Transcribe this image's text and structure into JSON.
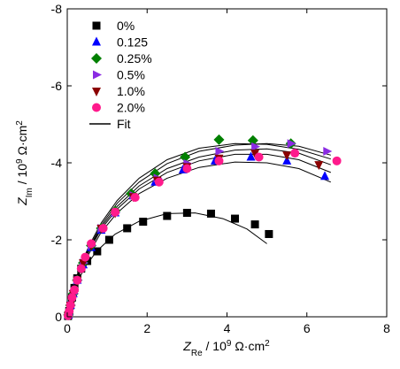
{
  "chart_data": {
    "type": "scatter",
    "x_axis": {
      "label_main": "Z",
      "label_sub": "Re",
      "label_unit": " / 10",
      "label_exp": "9",
      "label_tail": " Ω·cm",
      "label_sq": "2",
      "range": [
        0,
        8
      ],
      "ticks": [
        0,
        2,
        4,
        6,
        8
      ]
    },
    "y_axis": {
      "label_main": "Z",
      "label_sub": "Im",
      "label_unit": " / 10",
      "label_exp": "9",
      "label_tail": " Ω·cm",
      "label_sq": "2",
      "range": [
        0,
        -8
      ],
      "ticks": [
        0,
        -2,
        -4,
        -6,
        -8
      ],
      "tick_labels": [
        "0",
        "-2",
        "-4",
        "-6",
        "-8"
      ]
    },
    "legend_position": "top-left",
    "series": [
      {
        "name": "0%",
        "marker": "square",
        "color": "#000000",
        "points": [
          [
            0.02,
            -0.02
          ],
          [
            0.05,
            -0.15
          ],
          [
            0.08,
            -0.3
          ],
          [
            0.12,
            -0.5
          ],
          [
            0.18,
            -0.75
          ],
          [
            0.25,
            -1.0
          ],
          [
            0.35,
            -1.25
          ],
          [
            0.5,
            -1.45
          ],
          [
            0.75,
            -1.7
          ],
          [
            1.05,
            -2.0
          ],
          [
            1.5,
            -2.3
          ],
          [
            1.9,
            -2.47
          ],
          [
            2.5,
            -2.62
          ],
          [
            3.0,
            -2.7
          ],
          [
            3.6,
            -2.68
          ],
          [
            4.2,
            -2.55
          ],
          [
            4.7,
            -2.4
          ],
          [
            5.05,
            -2.15
          ]
        ]
      },
      {
        "name": "0.125",
        "marker": "triangle-up",
        "color": "#0000ff",
        "points": [
          [
            0.03,
            -0.05
          ],
          [
            0.08,
            -0.3
          ],
          [
            0.15,
            -0.6
          ],
          [
            0.25,
            -0.95
          ],
          [
            0.4,
            -1.35
          ],
          [
            0.6,
            -1.8
          ],
          [
            0.85,
            -2.25
          ],
          [
            1.2,
            -2.7
          ],
          [
            1.65,
            -3.15
          ],
          [
            2.2,
            -3.5
          ],
          [
            2.9,
            -3.82
          ],
          [
            3.7,
            -4.05
          ],
          [
            4.6,
            -4.15
          ],
          [
            5.5,
            -4.05
          ],
          [
            6.45,
            -3.65
          ]
        ]
      },
      {
        "name": "0.25%",
        "marker": "diamond",
        "color": "#008000",
        "points": [
          [
            0.03,
            -0.05
          ],
          [
            0.08,
            -0.3
          ],
          [
            0.15,
            -0.6
          ],
          [
            0.25,
            -0.95
          ],
          [
            0.4,
            -1.4
          ],
          [
            0.6,
            -1.85
          ],
          [
            0.85,
            -2.3
          ],
          [
            1.2,
            -2.75
          ],
          [
            1.6,
            -3.2
          ],
          [
            2.2,
            -3.72
          ],
          [
            2.95,
            -4.15
          ],
          [
            3.8,
            -4.6
          ],
          [
            4.65,
            -4.58
          ],
          [
            5.6,
            -4.5
          ]
        ]
      },
      {
        "name": "0.5%",
        "marker": "triangle-right",
        "color": "#8a2be2",
        "points": [
          [
            0.03,
            -0.05
          ],
          [
            0.08,
            -0.3
          ],
          [
            0.15,
            -0.6
          ],
          [
            0.25,
            -0.95
          ],
          [
            0.4,
            -1.4
          ],
          [
            0.6,
            -1.85
          ],
          [
            0.85,
            -2.3
          ],
          [
            1.2,
            -2.7
          ],
          [
            1.65,
            -3.15
          ],
          [
            2.25,
            -3.6
          ],
          [
            3.0,
            -3.98
          ],
          [
            3.8,
            -4.3
          ],
          [
            4.7,
            -4.42
          ],
          [
            5.6,
            -4.5
          ],
          [
            6.5,
            -4.3
          ]
        ]
      },
      {
        "name": "1.0%",
        "marker": "triangle-down",
        "color": "#8b0000",
        "points": [
          [
            0.03,
            -0.05
          ],
          [
            0.08,
            -0.3
          ],
          [
            0.15,
            -0.6
          ],
          [
            0.25,
            -0.95
          ],
          [
            0.4,
            -1.4
          ],
          [
            0.6,
            -1.85
          ],
          [
            0.85,
            -2.3
          ],
          [
            1.2,
            -2.7
          ],
          [
            1.65,
            -3.12
          ],
          [
            2.25,
            -3.55
          ],
          [
            3.0,
            -3.9
          ],
          [
            3.8,
            -4.12
          ],
          [
            4.7,
            -4.25
          ],
          [
            5.5,
            -4.2
          ],
          [
            6.3,
            -3.95
          ]
        ]
      },
      {
        "name": "2.0%",
        "marker": "circle",
        "color": "#ff1a8c",
        "points": [
          [
            0.02,
            -0.03
          ],
          [
            0.05,
            -0.15
          ],
          [
            0.08,
            -0.3
          ],
          [
            0.12,
            -0.5
          ],
          [
            0.18,
            -0.7
          ],
          [
            0.25,
            -0.95
          ],
          [
            0.35,
            -1.25
          ],
          [
            0.45,
            -1.55
          ],
          [
            0.6,
            -1.9
          ],
          [
            0.9,
            -2.3
          ],
          [
            1.2,
            -2.72
          ],
          [
            1.7,
            -3.1
          ],
          [
            2.3,
            -3.5
          ],
          [
            3.0,
            -3.85
          ],
          [
            3.8,
            -4.05
          ],
          [
            4.8,
            -4.15
          ],
          [
            5.7,
            -4.25
          ],
          [
            6.75,
            -4.05
          ]
        ]
      },
      {
        "name": "Fit",
        "marker": "line",
        "color": "#000000",
        "points": []
      }
    ],
    "fit_curves": [
      [
        [
          0,
          0
        ],
        [
          0.05,
          -0.2
        ],
        [
          0.12,
          -0.5
        ],
        [
          0.25,
          -0.9
        ],
        [
          0.45,
          -1.3
        ],
        [
          0.75,
          -1.72
        ],
        [
          1.2,
          -2.15
        ],
        [
          1.8,
          -2.48
        ],
        [
          2.5,
          -2.68
        ],
        [
          3.2,
          -2.7
        ],
        [
          3.9,
          -2.55
        ],
        [
          4.5,
          -2.28
        ],
        [
          5.0,
          -1.9
        ]
      ],
      [
        [
          0,
          0
        ],
        [
          0.05,
          -0.3
        ],
        [
          0.15,
          -0.65
        ],
        [
          0.3,
          -1.1
        ],
        [
          0.55,
          -1.65
        ],
        [
          0.85,
          -2.2
        ],
        [
          1.25,
          -2.7
        ],
        [
          1.8,
          -3.2
        ],
        [
          2.5,
          -3.6
        ],
        [
          3.3,
          -3.88
        ],
        [
          4.2,
          -4.02
        ],
        [
          5.0,
          -4.0
        ],
        [
          5.8,
          -3.85
        ],
        [
          6.6,
          -3.5
        ]
      ],
      [
        [
          0,
          0
        ],
        [
          0.05,
          -0.3
        ],
        [
          0.15,
          -0.68
        ],
        [
          0.3,
          -1.15
        ],
        [
          0.55,
          -1.72
        ],
        [
          0.85,
          -2.28
        ],
        [
          1.25,
          -2.8
        ],
        [
          1.8,
          -3.32
        ],
        [
          2.5,
          -3.75
        ],
        [
          3.3,
          -4.05
        ],
        [
          4.2,
          -4.22
        ],
        [
          5.0,
          -4.22
        ],
        [
          5.8,
          -4.08
        ],
        [
          6.6,
          -3.75
        ]
      ],
      [
        [
          0,
          0
        ],
        [
          0.05,
          -0.31
        ],
        [
          0.15,
          -0.7
        ],
        [
          0.3,
          -1.18
        ],
        [
          0.55,
          -1.76
        ],
        [
          0.85,
          -2.33
        ],
        [
          1.25,
          -2.87
        ],
        [
          1.8,
          -3.4
        ],
        [
          2.5,
          -3.85
        ],
        [
          3.3,
          -4.15
        ],
        [
          4.2,
          -4.33
        ],
        [
          5.0,
          -4.36
        ],
        [
          5.8,
          -4.25
        ],
        [
          6.6,
          -3.95
        ]
      ],
      [
        [
          0,
          0
        ],
        [
          0.05,
          -0.32
        ],
        [
          0.15,
          -0.72
        ],
        [
          0.3,
          -1.22
        ],
        [
          0.55,
          -1.8
        ],
        [
          0.85,
          -2.38
        ],
        [
          1.25,
          -2.95
        ],
        [
          1.8,
          -3.5
        ],
        [
          2.5,
          -3.98
        ],
        [
          3.3,
          -4.3
        ],
        [
          4.2,
          -4.46
        ],
        [
          5.0,
          -4.5
        ],
        [
          5.8,
          -4.43
        ],
        [
          6.6,
          -4.2
        ]
      ],
      [
        [
          0,
          0
        ],
        [
          0.05,
          -0.33
        ],
        [
          0.15,
          -0.74
        ],
        [
          0.3,
          -1.26
        ],
        [
          0.55,
          -1.85
        ],
        [
          0.85,
          -2.44
        ],
        [
          1.25,
          -3.02
        ],
        [
          1.8,
          -3.6
        ],
        [
          2.5,
          -4.08
        ],
        [
          3.3,
          -4.38
        ],
        [
          4.2,
          -4.5
        ],
        [
          5.0,
          -4.48
        ],
        [
          5.8,
          -4.35
        ],
        [
          6.6,
          -4.1
        ]
      ]
    ]
  }
}
